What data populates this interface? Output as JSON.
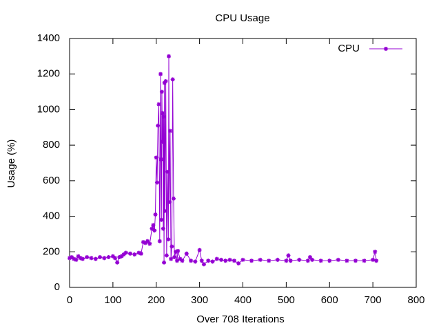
{
  "chart_data": {
    "type": "line",
    "title": "CPU Usage",
    "x_label": "Over 708 Iterations",
    "y_label": "Usage (%)",
    "x": [
      0,
      5,
      10,
      15,
      20,
      25,
      30,
      40,
      50,
      60,
      70,
      80,
      90,
      100,
      105,
      110,
      115,
      120,
      125,
      130,
      140,
      150,
      160,
      165,
      170,
      175,
      180,
      185,
      190,
      193,
      196,
      198,
      200,
      202,
      204,
      206,
      208,
      210,
      211,
      212,
      213,
      214,
      215,
      216,
      217,
      218,
      219,
      220,
      222,
      224,
      226,
      228,
      229,
      230,
      232,
      234,
      236,
      238,
      240,
      242,
      245,
      248,
      250,
      255,
      260,
      270,
      280,
      290,
      300,
      305,
      310,
      320,
      330,
      340,
      350,
      360,
      370,
      380,
      390,
      400,
      420,
      440,
      460,
      480,
      500,
      505,
      510,
      530,
      550,
      555,
      560,
      580,
      600,
      620,
      640,
      660,
      680,
      700,
      705,
      708
    ],
    "series": [
      {
        "name": "CPU",
        "color": "#9400d3",
        "values": [
          165,
          170,
          160,
          155,
          175,
          165,
          160,
          170,
          165,
          160,
          170,
          165,
          170,
          175,
          165,
          140,
          170,
          175,
          185,
          195,
          190,
          185,
          195,
          190,
          255,
          250,
          260,
          245,
          330,
          350,
          320,
          410,
          730,
          590,
          910,
          1030,
          260,
          1200,
          720,
          380,
          1100,
          820,
          980,
          330,
          960,
          140,
          1150,
          430,
          1160,
          180,
          650,
          270,
          1300,
          480,
          880,
          160,
          230,
          1170,
          500,
          170,
          200,
          150,
          205,
          160,
          150,
          190,
          150,
          145,
          210,
          150,
          130,
          150,
          145,
          160,
          155,
          150,
          155,
          150,
          135,
          155,
          150,
          155,
          150,
          155,
          150,
          180,
          150,
          155,
          150,
          170,
          155,
          150,
          150,
          155,
          150,
          150,
          150,
          155,
          200,
          150
        ]
      }
    ],
    "xlim": [
      0,
      800
    ],
    "ylim": [
      0,
      1400
    ],
    "xticks": [
      0,
      100,
      200,
      300,
      400,
      500,
      600,
      700,
      800
    ],
    "yticks": [
      0,
      200,
      400,
      600,
      800,
      1000,
      1200,
      1400
    ],
    "grid": false,
    "legend": "top-right"
  }
}
